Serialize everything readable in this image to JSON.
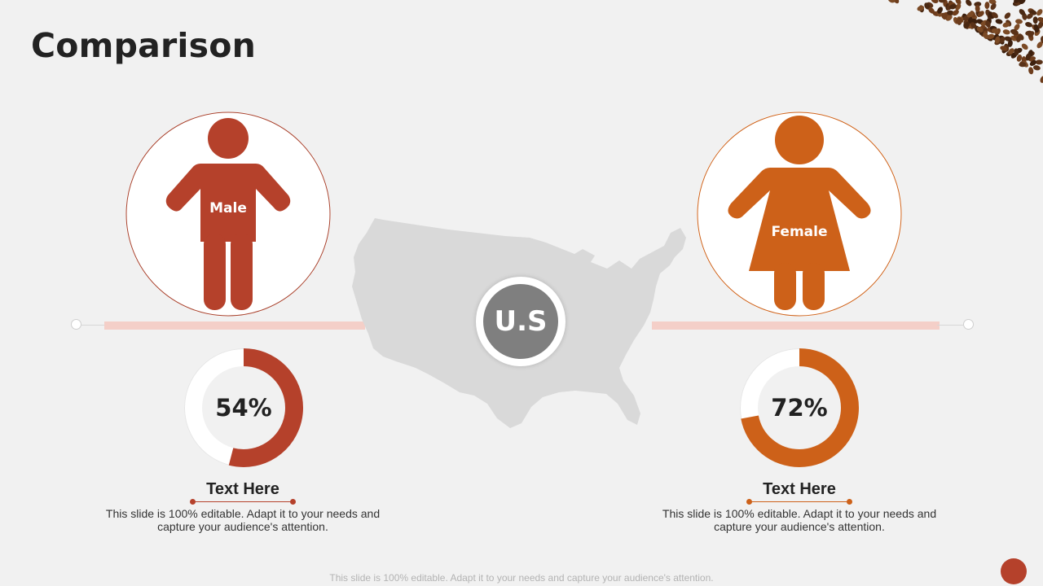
{
  "slide": {
    "title": "Comparison",
    "center_badge": "U.S",
    "footer": "This slide is 100% editable. Adapt it to your needs and capture your audience's attention."
  },
  "male": {
    "label": "Male",
    "percent_text": "54%",
    "percent_value": 54,
    "heading": "Text Here",
    "description": "This slide is 100% editable. Adapt it to your needs and capture your audience's attention.",
    "color": "#b5412b"
  },
  "female": {
    "label": "Female",
    "percent_text": "72%",
    "percent_value": 72,
    "heading": "Text Here",
    "description": "This slide is 100% editable. Adapt it to your needs and capture your audience's attention.",
    "color": "#cd6119"
  },
  "colors": {
    "background": "#f1f1f1",
    "connector": "#f4cfc8",
    "map": "#d9d9d9",
    "badge": "#7f7f7f"
  }
}
